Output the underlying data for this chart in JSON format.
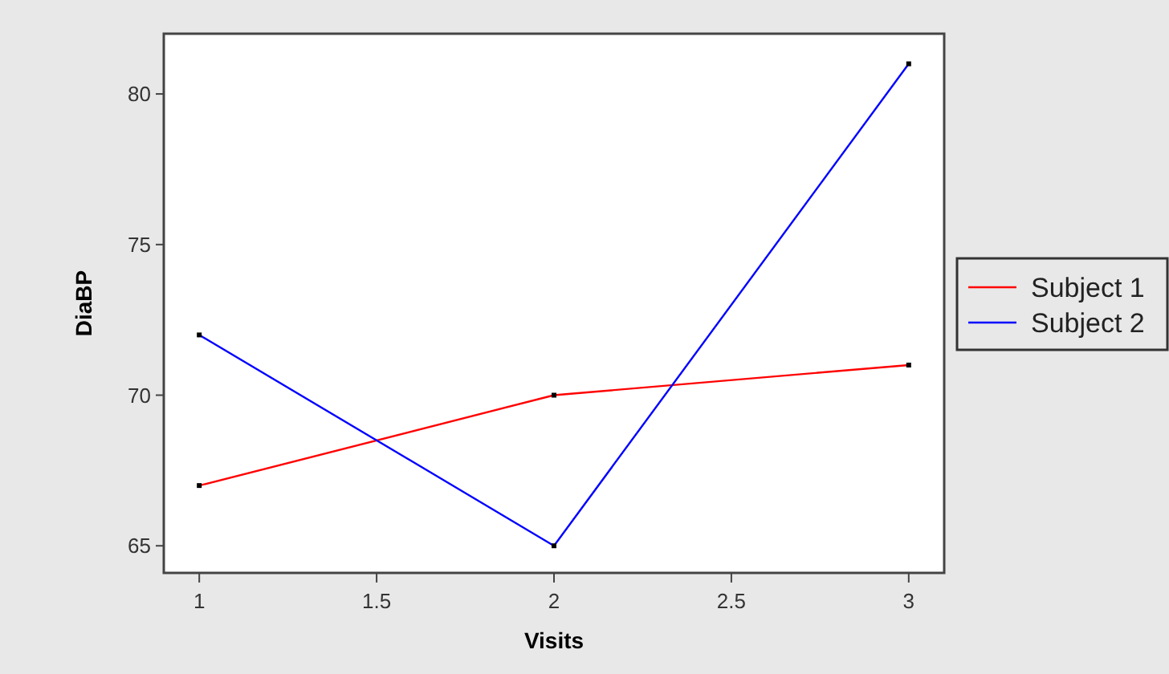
{
  "chart_data": {
    "type": "line",
    "xlabel": "Visits",
    "ylabel": "DiaBP",
    "x": [
      1,
      2,
      3
    ],
    "series": [
      {
        "name": "Subject 1",
        "color": "#ff0000",
        "values": [
          67,
          70,
          71
        ]
      },
      {
        "name": "Subject 2",
        "color": "#0000ff",
        "values": [
          72,
          65,
          81
        ]
      }
    ],
    "xlim": [
      0.9,
      3.1
    ],
    "xticks": [
      1,
      1.5,
      2,
      2.5,
      3
    ],
    "ylim": [
      64.1,
      82
    ],
    "yticks": [
      65,
      70,
      75,
      80
    ],
    "grid": false,
    "legend": "right",
    "marker": "square",
    "line_style": "solid"
  }
}
